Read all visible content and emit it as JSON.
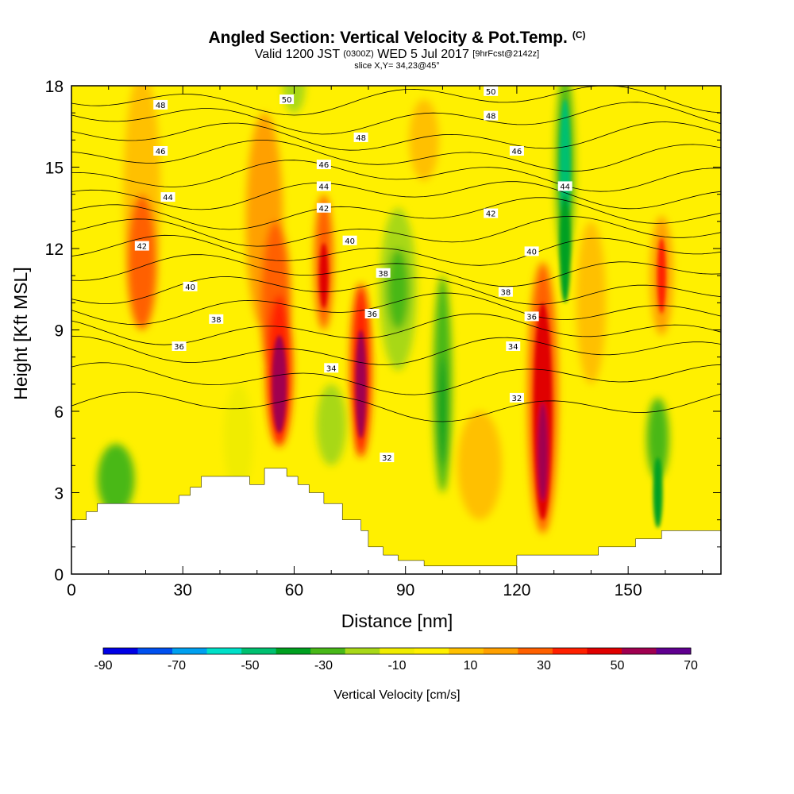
{
  "header": {
    "title": "Angled Section: Vertical Velocity & Pot.Temp.",
    "copyright": "(C)",
    "valid_prefix": "Valid 1200 JST",
    "valid_utc": "(0300Z)",
    "valid_date": "WED 5 Jul 2017",
    "forecast": "[9hrFcst@2142z]",
    "slice": "slice X,Y= 34,23@45°"
  },
  "chart_data": {
    "type": "heatmap",
    "title": "Angled Section: Vertical Velocity & Pot.Temp.",
    "xlabel": "Distance [nm]",
    "ylabel": "Height [Kft MSL]",
    "xlim": [
      0,
      175
    ],
    "ylim": [
      0,
      18
    ],
    "x_ticks": [
      0,
      30,
      60,
      90,
      120,
      150
    ],
    "y_ticks": [
      0,
      3,
      6,
      9,
      12,
      15,
      18
    ],
    "colorbar": {
      "label": "Vertical Velocity [cm/s]",
      "tick_labels": [
        "-90",
        "-70",
        "-50",
        "-30",
        "-10",
        "10",
        "30",
        "50",
        "70"
      ],
      "boundaries": [
        -90,
        -80,
        -70,
        -60,
        -50,
        -40,
        -30,
        -20,
        -10,
        0,
        10,
        20,
        30,
        40,
        50,
        60,
        70
      ],
      "colors": [
        "#0000e6",
        "#0050f0",
        "#00a0f0",
        "#00e0c8",
        "#00c070",
        "#00a020",
        "#48b818",
        "#a8d818",
        "#f0ec00",
        "#fff000",
        "#ffc000",
        "#ffa000",
        "#ff6000",
        "#ff2000",
        "#e00000",
        "#a00050",
        "#600090"
      ]
    },
    "theta_contour_labels": [
      {
        "x": 24,
        "y": 17.3,
        "text": "48"
      },
      {
        "x": 24,
        "y": 15.6,
        "text": "46"
      },
      {
        "x": 26,
        "y": 13.9,
        "text": "44"
      },
      {
        "x": 19,
        "y": 12.1,
        "text": "42"
      },
      {
        "x": 32,
        "y": 10.6,
        "text": "40"
      },
      {
        "x": 39,
        "y": 9.4,
        "text": "38"
      },
      {
        "x": 29,
        "y": 8.4,
        "text": "36"
      },
      {
        "x": 58,
        "y": 17.5,
        "text": "50"
      },
      {
        "x": 78,
        "y": 16.1,
        "text": "48"
      },
      {
        "x": 68,
        "y": 15.1,
        "text": "46"
      },
      {
        "x": 68,
        "y": 14.3,
        "text": "44"
      },
      {
        "x": 68,
        "y": 13.5,
        "text": "42"
      },
      {
        "x": 75,
        "y": 12.3,
        "text": "40"
      },
      {
        "x": 84,
        "y": 11.1,
        "text": "38"
      },
      {
        "x": 81,
        "y": 9.6,
        "text": "36"
      },
      {
        "x": 70,
        "y": 7.6,
        "text": "34"
      },
      {
        "x": 85,
        "y": 4.3,
        "text": "32"
      },
      {
        "x": 113,
        "y": 17.8,
        "text": "50"
      },
      {
        "x": 113,
        "y": 16.9,
        "text": "48"
      },
      {
        "x": 120,
        "y": 15.6,
        "text": "46"
      },
      {
        "x": 133,
        "y": 14.3,
        "text": "44"
      },
      {
        "x": 113,
        "y": 13.3,
        "text": "42"
      },
      {
        "x": 124,
        "y": 11.9,
        "text": "40"
      },
      {
        "x": 117,
        "y": 10.4,
        "text": "38"
      },
      {
        "x": 124,
        "y": 9.5,
        "text": "36"
      },
      {
        "x": 119,
        "y": 8.4,
        "text": "34"
      },
      {
        "x": 120,
        "y": 6.5,
        "text": "32"
      }
    ]
  }
}
